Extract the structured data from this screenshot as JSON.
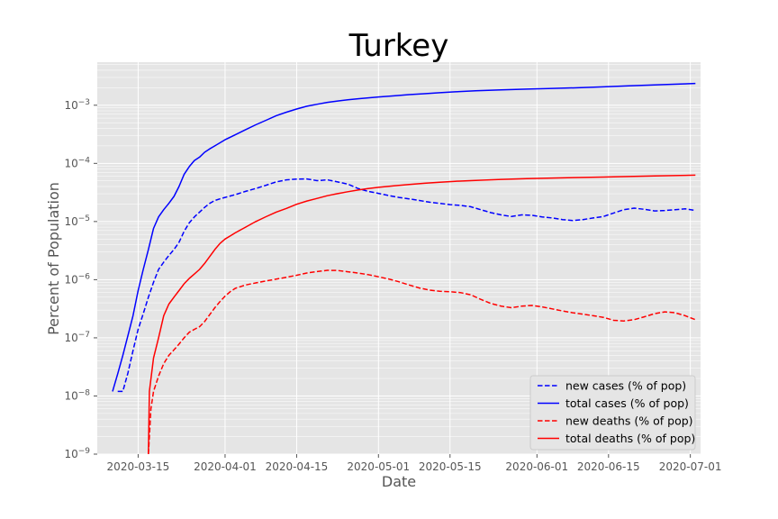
{
  "chart_data": {
    "type": "line",
    "title": "Turkey",
    "xlabel": "Date",
    "ylabel": "Percent of Population",
    "yscale": "log",
    "ylim": [
      1e-09,
      0.0055
    ],
    "xlim": [
      "2020-03-07",
      "2020-07-03"
    ],
    "grid": true,
    "legend_position": "bottom-right",
    "x_ticks": [
      "2020-03-15",
      "2020-04-01",
      "2020-04-15",
      "2020-05-01",
      "2020-05-15",
      "2020-06-01",
      "2020-06-15",
      "2020-07-01"
    ],
    "y_ticks": [
      {
        "value": 1e-09,
        "base": "10",
        "exp": "−9"
      },
      {
        "value": 1e-08,
        "base": "10",
        "exp": "−8"
      },
      {
        "value": 1e-07,
        "base": "10",
        "exp": "−7"
      },
      {
        "value": 1e-06,
        "base": "10",
        "exp": "−6"
      },
      {
        "value": 1e-05,
        "base": "10",
        "exp": "−5"
      },
      {
        "value": 0.0001,
        "base": "10",
        "exp": "−4"
      },
      {
        "value": 0.001,
        "base": "10",
        "exp": "−3"
      }
    ],
    "series": [
      {
        "name": "new cases (% of pop)",
        "color": "#0000ff",
        "dash": true,
        "points": [
          [
            "2020-03-11",
            1.2e-08
          ],
          [
            "2020-03-12",
            1.2e-08
          ],
          [
            "2020-03-13",
            2.5e-08
          ],
          [
            "2020-03-14",
            6e-08
          ],
          [
            "2020-03-15",
            1.4e-07
          ],
          [
            "2020-03-16",
            2.6e-07
          ],
          [
            "2020-03-17",
            5e-07
          ],
          [
            "2020-03-18",
            9e-07
          ],
          [
            "2020-03-19",
            1.5e-06
          ],
          [
            "2020-03-20",
            2e-06
          ],
          [
            "2020-03-21",
            2.6e-06
          ],
          [
            "2020-03-22",
            3.3e-06
          ],
          [
            "2020-03-23",
            4.4e-06
          ],
          [
            "2020-03-24",
            6.8e-06
          ],
          [
            "2020-03-25",
            9.5e-06
          ],
          [
            "2020-03-26",
            1.2e-05
          ],
          [
            "2020-03-27",
            1.45e-05
          ],
          [
            "2020-03-28",
            1.75e-05
          ],
          [
            "2020-03-29",
            2.05e-05
          ],
          [
            "2020-03-30",
            2.3e-05
          ],
          [
            "2020-03-31",
            2.45e-05
          ],
          [
            "2020-04-01",
            2.6e-05
          ],
          [
            "2020-04-03",
            2.9e-05
          ],
          [
            "2020-04-05",
            3.3e-05
          ],
          [
            "2020-04-07",
            3.7e-05
          ],
          [
            "2020-04-09",
            4.2e-05
          ],
          [
            "2020-04-11",
            4.8e-05
          ],
          [
            "2020-04-13",
            5.2e-05
          ],
          [
            "2020-04-15",
            5.35e-05
          ],
          [
            "2020-04-17",
            5.4e-05
          ],
          [
            "2020-04-19",
            5.05e-05
          ],
          [
            "2020-04-21",
            5.2e-05
          ],
          [
            "2020-04-23",
            4.8e-05
          ],
          [
            "2020-04-25",
            4.4e-05
          ],
          [
            "2020-04-27",
            3.7e-05
          ],
          [
            "2020-04-29",
            3.3e-05
          ],
          [
            "2020-05-01",
            3.05e-05
          ],
          [
            "2020-05-03",
            2.8e-05
          ],
          [
            "2020-05-05",
            2.6e-05
          ],
          [
            "2020-05-07",
            2.45e-05
          ],
          [
            "2020-05-09",
            2.3e-05
          ],
          [
            "2020-05-11",
            2.15e-05
          ],
          [
            "2020-05-13",
            2.05e-05
          ],
          [
            "2020-05-15",
            1.95e-05
          ],
          [
            "2020-05-17",
            1.9e-05
          ],
          [
            "2020-05-19",
            1.8e-05
          ],
          [
            "2020-05-21",
            1.6e-05
          ],
          [
            "2020-05-23",
            1.42e-05
          ],
          [
            "2020-05-25",
            1.3e-05
          ],
          [
            "2020-05-27",
            1.22e-05
          ],
          [
            "2020-05-29",
            1.3e-05
          ],
          [
            "2020-05-31",
            1.28e-05
          ],
          [
            "2020-06-02",
            1.2e-05
          ],
          [
            "2020-06-04",
            1.15e-05
          ],
          [
            "2020-06-06",
            1.08e-05
          ],
          [
            "2020-06-08",
            1.04e-05
          ],
          [
            "2020-06-10",
            1.08e-05
          ],
          [
            "2020-06-12",
            1.15e-05
          ],
          [
            "2020-06-14",
            1.22e-05
          ],
          [
            "2020-06-16",
            1.4e-05
          ],
          [
            "2020-06-18",
            1.6e-05
          ],
          [
            "2020-06-20",
            1.7e-05
          ],
          [
            "2020-06-22",
            1.62e-05
          ],
          [
            "2020-06-24",
            1.52e-05
          ],
          [
            "2020-06-26",
            1.55e-05
          ],
          [
            "2020-06-28",
            1.6e-05
          ],
          [
            "2020-06-30",
            1.65e-05
          ],
          [
            "2020-07-02",
            1.55e-05
          ]
        ]
      },
      {
        "name": "total cases (% of pop)",
        "color": "#0000ff",
        "dash": false,
        "points": [
          [
            "2020-03-10",
            1.2e-08
          ],
          [
            "2020-03-11",
            2.4e-08
          ],
          [
            "2020-03-12",
            5e-08
          ],
          [
            "2020-03-13",
            1.1e-07
          ],
          [
            "2020-03-14",
            2.4e-07
          ],
          [
            "2020-03-15",
            6.5e-07
          ],
          [
            "2020-03-16",
            1.5e-06
          ],
          [
            "2020-03-17",
            3.3e-06
          ],
          [
            "2020-03-18",
            7.6e-06
          ],
          [
            "2020-03-19",
            1.2e-05
          ],
          [
            "2020-03-20",
            1.6e-05
          ],
          [
            "2020-03-21",
            2.05e-05
          ],
          [
            "2020-03-22",
            2.7e-05
          ],
          [
            "2020-03-23",
            4e-05
          ],
          [
            "2020-03-24",
            6.5e-05
          ],
          [
            "2020-03-25",
            8.8e-05
          ],
          [
            "2020-03-26",
            0.000112
          ],
          [
            "2020-03-27",
            0.000128
          ],
          [
            "2020-03-28",
            0.000155
          ],
          [
            "2020-03-29",
            0.000178
          ],
          [
            "2020-03-30",
            0.0002
          ],
          [
            "2020-04-01",
            0.000255
          ],
          [
            "2020-04-03",
            0.00031
          ],
          [
            "2020-04-05",
            0.00038
          ],
          [
            "2020-04-07",
            0.00046
          ],
          [
            "2020-04-09",
            0.00055
          ],
          [
            "2020-04-11",
            0.00066
          ],
          [
            "2020-04-13",
            0.00076
          ],
          [
            "2020-04-15",
            0.00086
          ],
          [
            "2020-04-17",
            0.00096
          ],
          [
            "2020-04-19",
            0.00104
          ],
          [
            "2020-04-21",
            0.00112
          ],
          [
            "2020-04-23",
            0.00118
          ],
          [
            "2020-04-25",
            0.00124
          ],
          [
            "2020-04-27",
            0.00129
          ],
          [
            "2020-04-29",
            0.00134
          ],
          [
            "2020-05-01",
            0.00139
          ],
          [
            "2020-05-04",
            0.00145
          ],
          [
            "2020-05-07",
            0.00152
          ],
          [
            "2020-05-10",
            0.00158
          ],
          [
            "2020-05-13",
            0.00164
          ],
          [
            "2020-05-16",
            0.0017
          ],
          [
            "2020-05-20",
            0.00177
          ],
          [
            "2020-05-25",
            0.00183
          ],
          [
            "2020-05-30",
            0.00189
          ],
          [
            "2020-06-04",
            0.00195
          ],
          [
            "2020-06-09",
            0.002
          ],
          [
            "2020-06-14",
            0.00207
          ],
          [
            "2020-06-19",
            0.00215
          ],
          [
            "2020-06-24",
            0.00223
          ],
          [
            "2020-06-29",
            0.00231
          ],
          [
            "2020-07-02",
            0.00237
          ]
        ]
      },
      {
        "name": "new deaths (% of pop)",
        "color": "#ff0000",
        "dash": true,
        "points": [
          [
            "2020-03-17",
            1e-09
          ],
          [
            "2020-03-17.5",
            6e-09
          ],
          [
            "2020-03-18",
            1.2e-08
          ],
          [
            "2020-03-19",
            2.2e-08
          ],
          [
            "2020-03-20",
            3.6e-08
          ],
          [
            "2020-03-21",
            5e-08
          ],
          [
            "2020-03-22",
            6.2e-08
          ],
          [
            "2020-03-23",
            7.8e-08
          ],
          [
            "2020-03-24",
            1e-07
          ],
          [
            "2020-03-25",
            1.25e-07
          ],
          [
            "2020-03-26",
            1.4e-07
          ],
          [
            "2020-03-27",
            1.55e-07
          ],
          [
            "2020-03-28",
            1.9e-07
          ],
          [
            "2020-03-29",
            2.5e-07
          ],
          [
            "2020-03-30",
            3.3e-07
          ],
          [
            "2020-03-31",
            4.2e-07
          ],
          [
            "2020-04-01",
            5.2e-07
          ],
          [
            "2020-04-02",
            6.2e-07
          ],
          [
            "2020-04-03",
            7.1e-07
          ],
          [
            "2020-04-05",
            8.1e-07
          ],
          [
            "2020-04-07",
            8.8e-07
          ],
          [
            "2020-04-09",
            9.5e-07
          ],
          [
            "2020-04-11",
            1.02e-06
          ],
          [
            "2020-04-13",
            1.1e-06
          ],
          [
            "2020-04-15",
            1.19e-06
          ],
          [
            "2020-04-17",
            1.3e-06
          ],
          [
            "2020-04-19",
            1.38e-06
          ],
          [
            "2020-04-21",
            1.45e-06
          ],
          [
            "2020-04-23",
            1.44e-06
          ],
          [
            "2020-04-25",
            1.37e-06
          ],
          [
            "2020-04-27",
            1.3e-06
          ],
          [
            "2020-04-29",
            1.22e-06
          ],
          [
            "2020-05-01",
            1.12e-06
          ],
          [
            "2020-05-03",
            1.03e-06
          ],
          [
            "2020-05-05",
            9.2e-07
          ],
          [
            "2020-05-07",
            8.1e-07
          ],
          [
            "2020-05-09",
            7.2e-07
          ],
          [
            "2020-05-11",
            6.6e-07
          ],
          [
            "2020-05-13",
            6.3e-07
          ],
          [
            "2020-05-15",
            6.2e-07
          ],
          [
            "2020-05-17",
            6e-07
          ],
          [
            "2020-05-19",
            5.5e-07
          ],
          [
            "2020-05-21",
            4.6e-07
          ],
          [
            "2020-05-23",
            3.9e-07
          ],
          [
            "2020-05-25",
            3.5e-07
          ],
          [
            "2020-05-27",
            3.3e-07
          ],
          [
            "2020-05-29",
            3.5e-07
          ],
          [
            "2020-05-31",
            3.6e-07
          ],
          [
            "2020-06-02",
            3.4e-07
          ],
          [
            "2020-06-04",
            3.15e-07
          ],
          [
            "2020-06-06",
            2.9e-07
          ],
          [
            "2020-06-08",
            2.7e-07
          ],
          [
            "2020-06-10",
            2.55e-07
          ],
          [
            "2020-06-12",
            2.4e-07
          ],
          [
            "2020-06-14",
            2.25e-07
          ],
          [
            "2020-06-16",
            2e-07
          ],
          [
            "2020-06-18",
            1.95e-07
          ],
          [
            "2020-06-20",
            2.05e-07
          ],
          [
            "2020-06-22",
            2.3e-07
          ],
          [
            "2020-06-24",
            2.6e-07
          ],
          [
            "2020-06-26",
            2.8e-07
          ],
          [
            "2020-06-28",
            2.7e-07
          ],
          [
            "2020-06-30",
            2.4e-07
          ],
          [
            "2020-07-02",
            2.05e-07
          ]
        ]
      },
      {
        "name": "total deaths (% of pop)",
        "color": "#ff0000",
        "dash": false,
        "points": [
          [
            "2020-03-17",
            1e-09
          ],
          [
            "2020-03-17.2",
            1.2e-08
          ],
          [
            "2020-03-18",
            4.5e-08
          ],
          [
            "2020-03-19",
            1e-07
          ],
          [
            "2020-03-20",
            2.4e-07
          ],
          [
            "2020-03-21",
            3.8e-07
          ],
          [
            "2020-03-22",
            5e-07
          ],
          [
            "2020-03-23",
            6.5e-07
          ],
          [
            "2020-03-24",
            8.5e-07
          ],
          [
            "2020-03-25",
            1.05e-06
          ],
          [
            "2020-03-26",
            1.25e-06
          ],
          [
            "2020-03-27",
            1.5e-06
          ],
          [
            "2020-03-28",
            1.9e-06
          ],
          [
            "2020-03-29",
            2.5e-06
          ],
          [
            "2020-03-30",
            3.3e-06
          ],
          [
            "2020-03-31",
            4.2e-06
          ],
          [
            "2020-04-01",
            5e-06
          ],
          [
            "2020-04-03",
            6.4e-06
          ],
          [
            "2020-04-05",
            8e-06
          ],
          [
            "2020-04-07",
            1e-05
          ],
          [
            "2020-04-09",
            1.21e-05
          ],
          [
            "2020-04-11",
            1.45e-05
          ],
          [
            "2020-04-13",
            1.68e-05
          ],
          [
            "2020-04-15",
            1.98e-05
          ],
          [
            "2020-04-17",
            2.25e-05
          ],
          [
            "2020-04-19",
            2.5e-05
          ],
          [
            "2020-04-21",
            2.78e-05
          ],
          [
            "2020-04-23",
            3.02e-05
          ],
          [
            "2020-04-25",
            3.25e-05
          ],
          [
            "2020-04-27",
            3.48e-05
          ],
          [
            "2020-04-29",
            3.68e-05
          ],
          [
            "2020-05-01",
            3.88e-05
          ],
          [
            "2020-05-04",
            4.12e-05
          ],
          [
            "2020-05-07",
            4.33e-05
          ],
          [
            "2020-05-10",
            4.55e-05
          ],
          [
            "2020-05-13",
            4.75e-05
          ],
          [
            "2020-05-16",
            4.92e-05
          ],
          [
            "2020-05-20",
            5.1e-05
          ],
          [
            "2020-05-25",
            5.3e-05
          ],
          [
            "2020-05-30",
            5.45e-05
          ],
          [
            "2020-06-04",
            5.6e-05
          ],
          [
            "2020-06-09",
            5.72e-05
          ],
          [
            "2020-06-14",
            5.82e-05
          ],
          [
            "2020-06-19",
            5.95e-05
          ],
          [
            "2020-06-24",
            6.08e-05
          ],
          [
            "2020-06-29",
            6.2e-05
          ],
          [
            "2020-07-02",
            6.27e-05
          ]
        ]
      }
    ]
  }
}
